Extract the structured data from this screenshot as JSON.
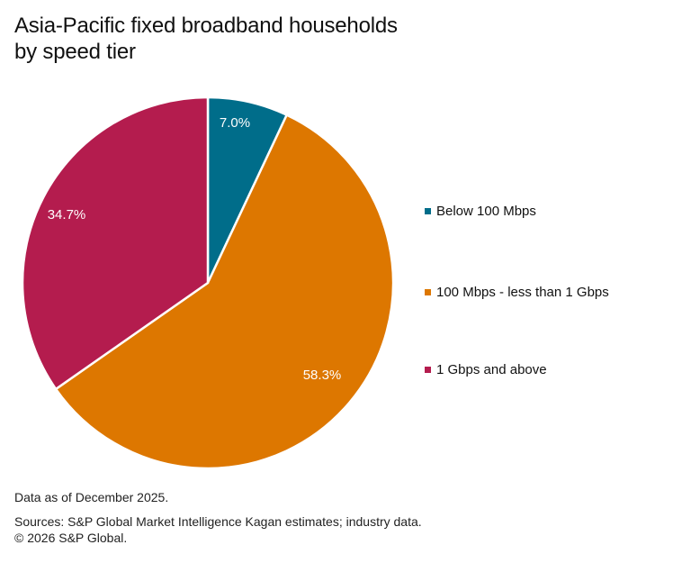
{
  "title_line1": "Asia-Pacific fixed broadband households",
  "title_line2": "by speed tier",
  "chart_data": {
    "type": "pie",
    "title": "Asia-Pacific fixed broadband households by speed tier",
    "categories": [
      "Below 100 Mbps",
      "100 Mbps - less than 1 Gbps",
      "1 Gbps and above"
    ],
    "values": [
      7.0,
      58.3,
      34.7
    ],
    "labels": [
      "7.0%",
      "58.3%",
      "34.7%"
    ],
    "colors": [
      "#006D8A",
      "#DD7700",
      "#B41C4E"
    ],
    "start_angle": "12 o'clock, clockwise",
    "legend_position": "right"
  },
  "legend": [
    {
      "label": "Below 100 Mbps",
      "color": "#006D8A"
    },
    {
      "label": "100 Mbps - less than 1 Gbps",
      "color": "#DD7700"
    },
    {
      "label": "1 Gbps and above",
      "color": "#B41C4E"
    }
  ],
  "footer": {
    "note": "Data as of December 2025.",
    "sources": "Sources: S&P Global Market Intelligence Kagan estimates; industry data.",
    "copyright": "© 2026 S&P Global."
  }
}
